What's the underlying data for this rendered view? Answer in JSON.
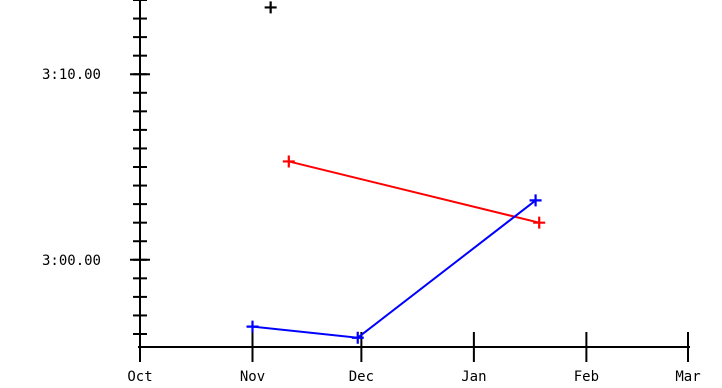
{
  "chart_data": {
    "type": "line",
    "title": "",
    "xlabel": "",
    "ylabel": "",
    "x_ticks": [
      {
        "label": "Oct",
        "value": "2000-10-01"
      },
      {
        "label": "Nov",
        "value": "2000-11-01"
      },
      {
        "label": "Dec",
        "value": "2000-12-01"
      },
      {
        "label": "Jan",
        "value": "2001-01-01"
      },
      {
        "label": "Feb",
        "value": "2001-02-01"
      },
      {
        "label": "Mar",
        "value": "2001-03-01"
      }
    ],
    "y_ticks": [
      {
        "label": "3:00.00",
        "seconds": 180
      },
      {
        "label": "3:10.00",
        "seconds": 190
      }
    ],
    "xlim": [
      "2000-10-01",
      "2001-03-01"
    ],
    "ylim_seconds": [
      175.3,
      194
    ],
    "y_minor_step_seconds": 1,
    "grid": false,
    "legend": "none",
    "series": [
      {
        "color": "#ff0000",
        "points": [
          {
            "x": "2000-11-11",
            "y_seconds": 185.3
          },
          {
            "x": "2001-01-19",
            "y_seconds": 182.0
          }
        ]
      },
      {
        "color": "#0000ff",
        "points": [
          {
            "x": "2000-11-01",
            "y_seconds": 176.4
          },
          {
            "x": "2000-11-30",
            "y_seconds": 175.8
          },
          {
            "x": "2001-01-18",
            "y_seconds": 183.2
          }
        ]
      },
      {
        "color": "#000000",
        "points": [
          {
            "x": "2000-11-06",
            "y_seconds": 193.6
          }
        ]
      }
    ]
  }
}
